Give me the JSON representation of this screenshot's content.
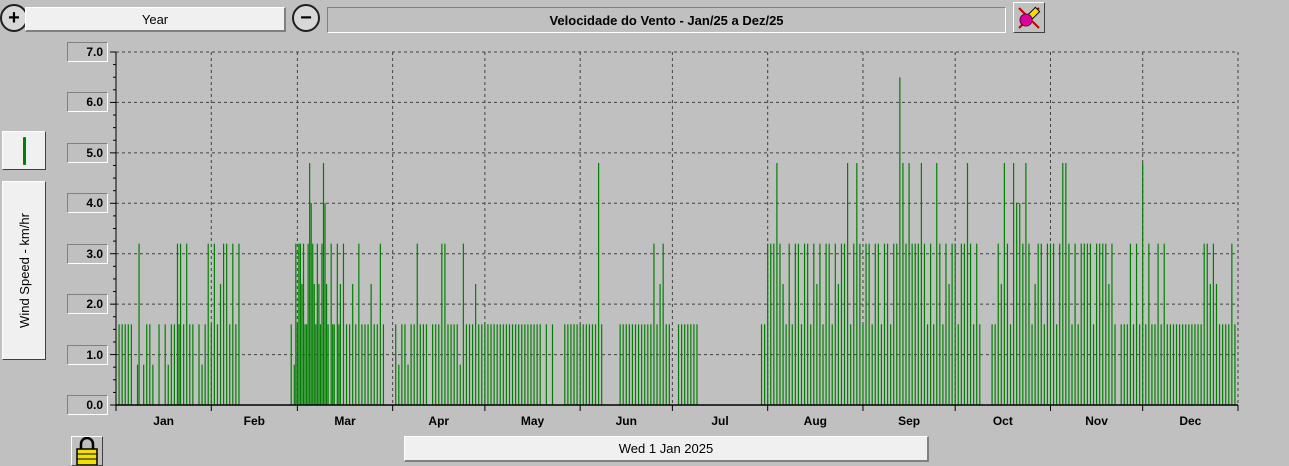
{
  "toolbar": {
    "period_label": "Year",
    "chart_title": "Velocidade do Vento - Jan/25 a Dez/25",
    "zoom_in_icon": "zoom-in-icon",
    "zoom_out_icon": "zoom-out-icon",
    "settings_icon": "pencil-paint-icon"
  },
  "left_panel": {
    "ylabel": "Wind Speed - km/hr",
    "legend_color": "#008000"
  },
  "footer": {
    "date_label": "Wed 1 Jan 2025",
    "lock_icon": "padlock-icon"
  },
  "colors": {
    "background": "#c0c0c0",
    "series": "#008000",
    "grid": "#404040"
  },
  "chart_data": {
    "type": "bar",
    "title": "Velocidade do Vento - Jan/25 a Dez/25",
    "ylabel": "Wind Speed - km/hr",
    "ylim": [
      0,
      7
    ],
    "yticks": [
      "7.0",
      "6.0",
      "5.0",
      "4.0",
      "3.0",
      "2.0",
      "1.0",
      "0.0"
    ],
    "ytick_values": [
      7,
      6,
      5,
      4,
      3,
      2,
      1,
      0
    ],
    "xlabels": [
      "Jan",
      "Feb",
      "Mar",
      "Apr",
      "May",
      "Jun",
      "Jul",
      "Aug",
      "Sep",
      "Oct",
      "Nov",
      "Dec"
    ],
    "x_unit": "day of year 2025",
    "grid": true,
    "series": [
      {
        "color": "#008000",
        "points": [
          [
            1,
            1.6
          ],
          [
            2,
            1.6
          ],
          [
            3,
            1.6
          ],
          [
            4,
            1.6
          ],
          [
            5,
            1.6
          ],
          [
            7,
            0.8
          ],
          [
            7.5,
            3.2
          ],
          [
            9,
            0.8
          ],
          [
            10,
            1.6
          ],
          [
            11,
            1.6
          ],
          [
            12,
            0.8
          ],
          [
            14,
            1.6
          ],
          [
            16,
            1.6
          ],
          [
            17,
            0.8
          ],
          [
            18,
            1.6
          ],
          [
            19,
            1.6
          ],
          [
            20,
            3.2
          ],
          [
            20.5,
            1.6
          ],
          [
            21,
            3.2
          ],
          [
            22,
            1.6
          ],
          [
            23,
            3.2
          ],
          [
            24,
            1.6
          ],
          [
            25,
            1.6
          ],
          [
            27,
            1.6
          ],
          [
            28,
            0.8
          ],
          [
            29,
            1.6
          ],
          [
            30,
            3.2
          ],
          [
            31,
            1.6
          ],
          [
            32,
            3.2
          ],
          [
            33,
            1.6
          ],
          [
            34,
            2.4
          ],
          [
            35,
            3.2
          ],
          [
            36,
            3.2
          ],
          [
            37,
            1.6
          ],
          [
            38,
            3.2
          ],
          [
            39,
            1.6
          ],
          [
            40,
            3.2
          ],
          [
            57,
            1.6
          ],
          [
            58,
            0.8
          ],
          [
            58.5,
            3.2
          ],
          [
            59,
            1.6
          ],
          [
            59.5,
            3.2
          ],
          [
            60,
            3.2
          ],
          [
            60.5,
            2.4
          ],
          [
            61,
            3.2
          ],
          [
            61.5,
            1.6
          ],
          [
            62,
            1.6
          ],
          [
            62.5,
            3.2
          ],
          [
            63,
            4.8
          ],
          [
            63.5,
            4.0
          ],
          [
            64,
            3.2
          ],
          [
            64.5,
            2.4
          ],
          [
            65,
            1.6
          ],
          [
            65.5,
            3.2
          ],
          [
            66,
            2.4
          ],
          [
            66.5,
            1.6
          ],
          [
            67,
            3.2
          ],
          [
            67.5,
            4.8
          ],
          [
            68,
            4.0
          ],
          [
            68.5,
            2.4
          ],
          [
            69,
            1.6
          ],
          [
            70,
            3.2
          ],
          [
            70.5,
            1.6
          ],
          [
            71,
            1.6
          ],
          [
            72,
            3.2
          ],
          [
            72.5,
            1.6
          ],
          [
            73,
            2.4
          ],
          [
            74,
            3.2
          ],
          [
            75,
            1.6
          ],
          [
            76,
            1.6
          ],
          [
            77,
            2.4
          ],
          [
            78,
            1.6
          ],
          [
            79,
            3.2
          ],
          [
            80,
            1.6
          ],
          [
            81,
            1.6
          ],
          [
            82,
            1.6
          ],
          [
            83,
            2.4
          ],
          [
            84,
            1.6
          ],
          [
            85,
            1.6
          ],
          [
            86,
            3.2
          ],
          [
            87,
            1.6
          ],
          [
            91,
            1.6
          ],
          [
            92,
            0.8
          ],
          [
            93,
            1.6
          ],
          [
            94,
            1.6
          ],
          [
            95,
            0.8
          ],
          [
            96,
            1.6
          ],
          [
            97,
            1.6
          ],
          [
            98,
            3.2
          ],
          [
            99,
            1.6
          ],
          [
            100,
            1.6
          ],
          [
            101,
            1.6
          ],
          [
            103,
            1.6
          ],
          [
            104,
            1.6
          ],
          [
            105,
            1.6
          ],
          [
            106,
            3.2
          ],
          [
            107,
            3.2
          ],
          [
            108,
            1.6
          ],
          [
            109,
            1.6
          ],
          [
            110,
            1.6
          ],
          [
            111,
            1.6
          ],
          [
            112,
            0.8
          ],
          [
            113,
            3.2
          ],
          [
            114,
            1.6
          ],
          [
            115,
            1.6
          ],
          [
            116,
            1.6
          ],
          [
            117,
            2.4
          ],
          [
            118,
            1.6
          ],
          [
            119,
            1.6
          ],
          [
            120,
            1.6
          ],
          [
            121,
            1.6
          ],
          [
            122,
            1.6
          ],
          [
            123,
            1.6
          ],
          [
            124,
            1.6
          ],
          [
            125,
            1.6
          ],
          [
            126,
            1.6
          ],
          [
            127,
            1.6
          ],
          [
            128,
            1.6
          ],
          [
            129,
            1.6
          ],
          [
            130,
            1.6
          ],
          [
            131,
            1.6
          ],
          [
            132,
            1.6
          ],
          [
            133,
            1.6
          ],
          [
            134,
            1.6
          ],
          [
            135,
            1.6
          ],
          [
            136,
            1.6
          ],
          [
            137,
            1.6
          ],
          [
            138,
            1.6
          ],
          [
            140,
            1.6
          ],
          [
            142,
            1.6
          ],
          [
            146,
            1.6
          ],
          [
            147,
            1.6
          ],
          [
            148,
            1.6
          ],
          [
            149,
            1.6
          ],
          [
            150,
            1.6
          ],
          [
            151,
            1.6
          ],
          [
            152,
            1.6
          ],
          [
            153,
            1.6
          ],
          [
            154,
            1.6
          ],
          [
            155,
            1.6
          ],
          [
            156,
            1.6
          ],
          [
            157,
            4.8
          ],
          [
            158,
            1.6
          ],
          [
            164,
            1.6
          ],
          [
            165,
            1.6
          ],
          [
            166,
            1.6
          ],
          [
            167,
            1.6
          ],
          [
            168,
            1.6
          ],
          [
            169,
            1.6
          ],
          [
            170,
            1.6
          ],
          [
            171,
            1.6
          ],
          [
            172,
            1.6
          ],
          [
            173,
            1.6
          ],
          [
            174,
            1.6
          ],
          [
            175,
            3.2
          ],
          [
            176,
            1.6
          ],
          [
            177,
            2.4
          ],
          [
            178,
            3.2
          ],
          [
            179,
            1.6
          ],
          [
            180,
            1.6
          ],
          [
            183,
            1.6
          ],
          [
            184,
            1.6
          ],
          [
            185,
            1.6
          ],
          [
            186,
            1.6
          ],
          [
            187,
            1.6
          ],
          [
            188,
            1.6
          ],
          [
            189,
            1.6
          ],
          [
            210,
            1.6
          ],
          [
            211,
            1.6
          ],
          [
            212,
            3.2
          ],
          [
            213,
            3.2
          ],
          [
            214,
            3.2
          ],
          [
            215,
            4.8
          ],
          [
            216,
            3.2
          ],
          [
            217,
            2.4
          ],
          [
            218,
            1.6
          ],
          [
            219,
            3.2
          ],
          [
            220,
            1.6
          ],
          [
            221,
            3.2
          ],
          [
            222,
            3.2
          ],
          [
            223,
            1.6
          ],
          [
            224,
            3.2
          ],
          [
            225,
            3.2
          ],
          [
            226,
            1.6
          ],
          [
            227,
            3.2
          ],
          [
            228,
            2.4
          ],
          [
            229,
            3.2
          ],
          [
            230,
            1.6
          ],
          [
            231,
            3.2
          ],
          [
            232,
            3.2
          ],
          [
            233,
            1.6
          ],
          [
            234,
            3.2
          ],
          [
            235,
            2.4
          ],
          [
            236,
            3.2
          ],
          [
            237,
            3.2
          ],
          [
            238,
            4.8
          ],
          [
            239,
            1.6
          ],
          [
            240,
            3.2
          ],
          [
            241,
            4.8
          ],
          [
            242,
            3.2
          ],
          [
            243,
            1.6
          ],
          [
            244,
            3.2
          ],
          [
            245,
            3.2
          ],
          [
            246,
            1.6
          ],
          [
            247,
            3.2
          ],
          [
            248,
            3.2
          ],
          [
            249,
            1.6
          ],
          [
            250,
            3.2
          ],
          [
            251,
            3.2
          ],
          [
            252,
            1.6
          ],
          [
            253,
            3.2
          ],
          [
            254,
            3.2
          ],
          [
            255,
            6.5
          ],
          [
            256,
            4.8
          ],
          [
            257,
            3.2
          ],
          [
            258,
            4.8
          ],
          [
            259,
            3.2
          ],
          [
            260,
            3.2
          ],
          [
            261,
            3.2
          ],
          [
            262,
            4.8
          ],
          [
            263,
            3.2
          ],
          [
            264,
            1.6
          ],
          [
            265,
            3.2
          ],
          [
            266,
            1.6
          ],
          [
            267,
            4.8
          ],
          [
            268,
            3.2
          ],
          [
            269,
            1.6
          ],
          [
            270,
            3.2
          ],
          [
            271,
            2.4
          ],
          [
            272,
            3.2
          ],
          [
            273,
            3.2
          ],
          [
            274,
            1.6
          ],
          [
            275,
            3.2
          ],
          [
            276,
            3.2
          ],
          [
            277,
            4.8
          ],
          [
            278,
            3.2
          ],
          [
            279,
            1.6
          ],
          [
            280,
            3.2
          ],
          [
            281,
            1.6
          ],
          [
            285,
            1.6
          ],
          [
            286,
            1.6
          ],
          [
            287,
            3.2
          ],
          [
            288,
            2.4
          ],
          [
            289,
            4.8
          ],
          [
            290,
            3.2
          ],
          [
            291,
            1.6
          ],
          [
            292,
            4.8
          ],
          [
            293,
            4.0
          ],
          [
            294,
            4.0
          ],
          [
            295,
            3.2
          ],
          [
            296,
            4.8
          ],
          [
            297,
            3.2
          ],
          [
            298,
            1.6
          ],
          [
            299,
            2.4
          ],
          [
            300,
            3.2
          ],
          [
            301,
            3.2
          ],
          [
            302,
            1.6
          ],
          [
            303,
            3.2
          ],
          [
            304,
            3.2
          ],
          [
            305,
            3.2
          ],
          [
            306,
            1.6
          ],
          [
            307,
            3.2
          ],
          [
            308,
            4.8
          ],
          [
            309,
            4.8
          ],
          [
            310,
            3.2
          ],
          [
            311,
            1.6
          ],
          [
            312,
            3.2
          ],
          [
            313,
            1.6
          ],
          [
            314,
            3.2
          ],
          [
            315,
            3.2
          ],
          [
            316,
            3.2
          ],
          [
            317,
            3.2
          ],
          [
            318,
            1.6
          ],
          [
            319,
            3.2
          ],
          [
            320,
            3.2
          ],
          [
            321,
            3.2
          ],
          [
            322,
            3.2
          ],
          [
            323,
            2.4
          ],
          [
            324,
            3.2
          ],
          [
            325,
            1.6
          ],
          [
            327,
            1.6
          ],
          [
            328,
            1.6
          ],
          [
            329,
            1.6
          ],
          [
            330,
            3.2
          ],
          [
            331,
            1.6
          ],
          [
            332,
            3.2
          ],
          [
            333,
            1.6
          ],
          [
            334,
            4.8
          ],
          [
            335,
            1.6
          ],
          [
            336,
            3.2
          ],
          [
            337,
            1.6
          ],
          [
            338,
            1.6
          ],
          [
            339,
            3.2
          ],
          [
            340,
            1.6
          ],
          [
            341,
            3.2
          ],
          [
            342,
            1.6
          ],
          [
            343,
            1.6
          ],
          [
            344,
            1.6
          ],
          [
            345,
            1.6
          ],
          [
            346,
            1.6
          ],
          [
            347,
            1.6
          ],
          [
            348,
            1.6
          ],
          [
            349,
            1.6
          ],
          [
            350,
            1.6
          ],
          [
            351,
            1.6
          ],
          [
            352,
            1.6
          ],
          [
            353,
            1.6
          ],
          [
            354,
            3.2
          ],
          [
            355,
            3.2
          ],
          [
            356,
            2.4
          ],
          [
            357,
            3.2
          ],
          [
            358,
            2.4
          ],
          [
            359,
            1.6
          ],
          [
            360,
            1.6
          ],
          [
            361,
            1.6
          ],
          [
            362,
            1.6
          ],
          [
            363,
            3.2
          ],
          [
            364,
            1.6
          ]
        ]
      }
    ]
  }
}
